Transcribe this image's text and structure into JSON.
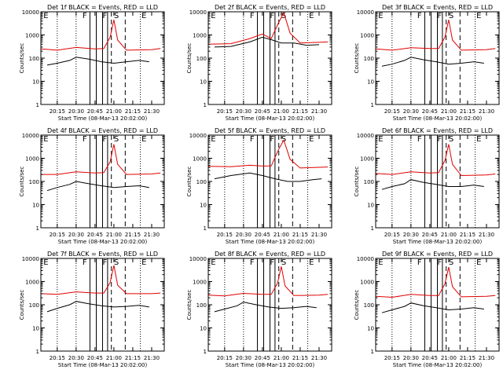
{
  "colors": {
    "events": "#000000",
    "lld": "#e00000",
    "axes": "#000000"
  },
  "shared": {
    "ylabel": "Counts/sec",
    "xlabel": "Start Time (08-Mar-13 20:02:00)",
    "xtick_labels": [
      "20:15",
      "20:30",
      "20:45",
      "21:00",
      "21:15",
      "21:30"
    ],
    "ytick_labels": [
      "1",
      "10",
      "100",
      "1000",
      "10000"
    ],
    "region_letters": [
      "E",
      "F",
      "F",
      "S",
      "E"
    ]
  },
  "chart_data": [
    {
      "type": "line",
      "title": "Det 1f BLACK = Events, RED = LLD",
      "yscale": "log",
      "ylim": [
        1,
        10000
      ],
      "xlabel": "Start Time (08-Mar-13 20:02:00)",
      "ylabel": "Counts/sec",
      "x_ticks": [
        "20:15",
        "20:30",
        "20:45",
        "21:00",
        "21:15",
        "21:30"
      ],
      "series": [
        {
          "name": "Events",
          "color": "#000000",
          "x": [
            "20:07",
            "20:15",
            "20:25",
            "20:30",
            "20:40",
            "20:50",
            "21:00",
            "21:10",
            "21:20",
            "21:28"
          ],
          "y": [
            50,
            60,
            80,
            110,
            90,
            70,
            60,
            70,
            80,
            70
          ]
        },
        {
          "name": "LLD",
          "color": "#e00000",
          "x": [
            "20:02",
            "20:15",
            "20:30",
            "20:45",
            "20:52",
            "20:57",
            "21:00",
            "21:03",
            "21:10",
            "21:30",
            "21:37"
          ],
          "y": [
            250,
            220,
            290,
            250,
            260,
            800,
            4500,
            600,
            220,
            230,
            260
          ]
        }
      ]
    },
    {
      "type": "line",
      "title": "Det 2f BLACK = Events, RED = LLD",
      "yscale": "log",
      "ylim": [
        1,
        10000
      ],
      "xlabel": "Start Time (08-Mar-13 20:02:00)",
      "ylabel": "Counts/sec",
      "x_ticks": [
        "20:15",
        "20:30",
        "20:45",
        "21:00",
        "21:15",
        "21:30"
      ],
      "series": [
        {
          "name": "Events",
          "color": "#000000",
          "x": [
            "20:07",
            "20:20",
            "20:35",
            "20:45",
            "20:53",
            "21:00",
            "21:10",
            "21:20",
            "21:30"
          ],
          "y": [
            300,
            320,
            500,
            800,
            600,
            450,
            450,
            360,
            380
          ]
        },
        {
          "name": "LLD",
          "color": "#e00000",
          "x": [
            "20:02",
            "20:20",
            "20:35",
            "20:45",
            "20:52",
            "20:58",
            "21:02",
            "21:07",
            "21:15",
            "21:37"
          ],
          "y": [
            400,
            420,
            700,
            1100,
            700,
            3500,
            9000,
            1200,
            450,
            500
          ]
        }
      ]
    },
    {
      "type": "line",
      "title": "Det 3f BLACK = Events, RED = LLD",
      "yscale": "log",
      "ylim": [
        1,
        10000
      ],
      "xlabel": "Start Time (08-Mar-13 20:02:00)",
      "ylabel": "Counts/sec",
      "x_ticks": [
        "20:15",
        "20:30",
        "20:45",
        "21:00",
        "21:15",
        "21:30"
      ],
      "series": [
        {
          "name": "Events",
          "color": "#000000",
          "x": [
            "20:07",
            "20:15",
            "20:25",
            "20:30",
            "20:40",
            "20:50",
            "21:00",
            "21:10",
            "21:20",
            "21:28"
          ],
          "y": [
            45,
            55,
            80,
            110,
            85,
            70,
            55,
            60,
            70,
            60
          ]
        },
        {
          "name": "LLD",
          "color": "#e00000",
          "x": [
            "20:02",
            "20:15",
            "20:30",
            "20:45",
            "20:52",
            "20:57",
            "21:00",
            "21:03",
            "21:10",
            "21:30",
            "21:37"
          ],
          "y": [
            250,
            220,
            280,
            260,
            260,
            800,
            4500,
            600,
            220,
            230,
            260
          ]
        }
      ]
    },
    {
      "type": "line",
      "title": "Det 4f BLACK = Events, RED = LLD",
      "yscale": "log",
      "ylim": [
        1,
        10000
      ],
      "xlabel": "Start Time (08-Mar-13 20:02:00)",
      "ylabel": "Counts/sec",
      "x_ticks": [
        "20:15",
        "20:30",
        "20:45",
        "21:00",
        "21:15",
        "21:30"
      ],
      "series": [
        {
          "name": "Events",
          "color": "#000000",
          "x": [
            "20:07",
            "20:15",
            "20:25",
            "20:30",
            "20:40",
            "20:50",
            "21:00",
            "21:10",
            "21:20",
            "21:28"
          ],
          "y": [
            40,
            55,
            75,
            100,
            80,
            65,
            55,
            60,
            65,
            55
          ]
        },
        {
          "name": "LLD",
          "color": "#e00000",
          "x": [
            "20:02",
            "20:15",
            "20:30",
            "20:45",
            "20:52",
            "20:57",
            "21:00",
            "21:03",
            "21:10",
            "21:30",
            "21:37"
          ],
          "y": [
            200,
            200,
            260,
            230,
            240,
            700,
            4000,
            550,
            200,
            210,
            230
          ]
        }
      ]
    },
    {
      "type": "line",
      "title": "Det 5f BLACK = Events, RED = LLD",
      "yscale": "log",
      "ylim": [
        1,
        10000
      ],
      "xlabel": "Start Time (08-Mar-13 20:02:00)",
      "ylabel": "Counts/sec",
      "x_ticks": [
        "20:15",
        "20:30",
        "20:45",
        "21:00",
        "21:15",
        "21:30"
      ],
      "series": [
        {
          "name": "Events",
          "color": "#000000",
          "x": [
            "20:07",
            "20:20",
            "20:35",
            "20:45",
            "20:55",
            "21:05",
            "21:15",
            "21:25",
            "21:32"
          ],
          "y": [
            130,
            180,
            230,
            180,
            130,
            100,
            100,
            120,
            130
          ]
        },
        {
          "name": "LLD",
          "color": "#e00000",
          "x": [
            "20:02",
            "20:20",
            "20:35",
            "20:45",
            "20:52",
            "20:58",
            "21:02",
            "21:07",
            "21:15",
            "21:37"
          ],
          "y": [
            450,
            430,
            500,
            460,
            470,
            2500,
            6000,
            900,
            380,
            420
          ]
        }
      ]
    },
    {
      "type": "line",
      "title": "Det 6f BLACK = Events, RED = LLD",
      "yscale": "log",
      "ylim": [
        1,
        10000
      ],
      "xlabel": "Start Time (08-Mar-13 20:02:00)",
      "ylabel": "Counts/sec",
      "x_ticks": [
        "20:15",
        "20:30",
        "20:45",
        "21:00",
        "21:15",
        "21:30"
      ],
      "series": [
        {
          "name": "Events",
          "color": "#000000",
          "x": [
            "20:07",
            "20:15",
            "20:25",
            "20:30",
            "20:40",
            "20:50",
            "21:00",
            "21:10",
            "21:20",
            "21:28"
          ],
          "y": [
            45,
            60,
            80,
            120,
            90,
            75,
            60,
            60,
            70,
            60
          ]
        },
        {
          "name": "LLD",
          "color": "#e00000",
          "x": [
            "20:02",
            "20:15",
            "20:30",
            "20:45",
            "20:52",
            "20:57",
            "21:00",
            "21:03",
            "21:10",
            "21:30",
            "21:37"
          ],
          "y": [
            220,
            200,
            260,
            230,
            240,
            800,
            4000,
            550,
            180,
            190,
            210
          ]
        }
      ]
    },
    {
      "type": "line",
      "title": "Det 7f BLACK = Events, RED = LLD",
      "yscale": "log",
      "ylim": [
        1,
        10000
      ],
      "xlabel": "Start Time (08-Mar-13 20:02:00)",
      "ylabel": "Counts/sec",
      "x_ticks": [
        "20:15",
        "20:30",
        "20:45",
        "21:00",
        "21:15",
        "21:30"
      ],
      "series": [
        {
          "name": "Events",
          "color": "#000000",
          "x": [
            "20:07",
            "20:15",
            "20:25",
            "20:30",
            "20:40",
            "20:50",
            "21:00",
            "21:10",
            "21:20",
            "21:28"
          ],
          "y": [
            50,
            70,
            100,
            140,
            110,
            90,
            80,
            85,
            95,
            80
          ]
        },
        {
          "name": "LLD",
          "color": "#e00000",
          "x": [
            "20:02",
            "20:15",
            "20:30",
            "20:45",
            "20:52",
            "20:57",
            "21:00",
            "21:03",
            "21:10",
            "21:30",
            "21:37"
          ],
          "y": [
            300,
            280,
            360,
            320,
            320,
            900,
            5000,
            700,
            300,
            300,
            320
          ]
        }
      ]
    },
    {
      "type": "line",
      "title": "Det 8f BLACK = Events, RED = LLD",
      "yscale": "log",
      "ylim": [
        1,
        10000
      ],
      "xlabel": "Start Time (08-Mar-13 20:02:00)",
      "ylabel": "Counts/sec",
      "x_ticks": [
        "20:15",
        "20:30",
        "20:45",
        "21:00",
        "21:15",
        "21:30"
      ],
      "series": [
        {
          "name": "Events",
          "color": "#000000",
          "x": [
            "20:07",
            "20:15",
            "20:25",
            "20:30",
            "20:40",
            "20:50",
            "21:00",
            "21:10",
            "21:20",
            "21:28"
          ],
          "y": [
            50,
            65,
            90,
            130,
            100,
            80,
            70,
            75,
            85,
            75
          ]
        },
        {
          "name": "LLD",
          "color": "#e00000",
          "x": [
            "20:02",
            "20:15",
            "20:30",
            "20:45",
            "20:52",
            "20:57",
            "21:00",
            "21:03",
            "21:10",
            "21:30",
            "21:37"
          ],
          "y": [
            260,
            240,
            310,
            280,
            280,
            850,
            4500,
            650,
            250,
            260,
            280
          ]
        }
      ]
    },
    {
      "type": "line",
      "title": "Det 9f BLACK = Events, RED = LLD",
      "yscale": "log",
      "ylim": [
        1,
        10000
      ],
      "xlabel": "Start Time (08-Mar-13 20:02:00)",
      "ylabel": "Counts/sec",
      "x_ticks": [
        "20:15",
        "20:30",
        "20:45",
        "21:00",
        "21:15",
        "21:30"
      ],
      "series": [
        {
          "name": "Events",
          "color": "#000000",
          "x": [
            "20:07",
            "20:15",
            "20:25",
            "20:30",
            "20:40",
            "20:50",
            "21:00",
            "21:10",
            "21:20",
            "21:28"
          ],
          "y": [
            45,
            60,
            85,
            120,
            90,
            75,
            60,
            65,
            75,
            65
          ]
        },
        {
          "name": "LLD",
          "color": "#e00000",
          "x": [
            "20:02",
            "20:15",
            "20:30",
            "20:45",
            "20:52",
            "20:57",
            "21:00",
            "21:03",
            "21:10",
            "21:30",
            "21:37"
          ],
          "y": [
            230,
            210,
            280,
            250,
            250,
            800,
            4200,
            600,
            220,
            230,
            250
          ]
        }
      ]
    }
  ]
}
